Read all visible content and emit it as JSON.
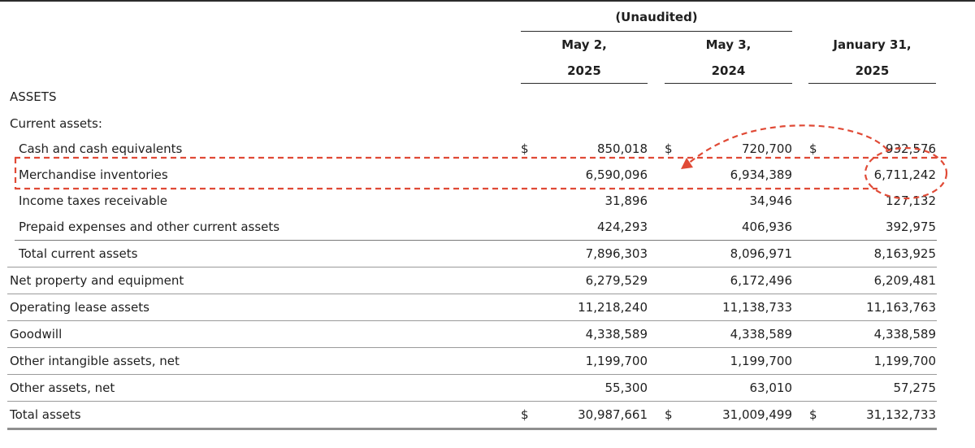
{
  "header": {
    "unaudited": "(Unaudited)",
    "columns": [
      {
        "line1": "May 2,",
        "line2": "2025"
      },
      {
        "line1": "May 3,",
        "line2": "2024"
      },
      {
        "line1": "January 31,",
        "line2": "2025"
      }
    ]
  },
  "sections": {
    "assets": "ASSETS",
    "current_assets": "Current assets:"
  },
  "currency_symbol": "$",
  "rows": [
    {
      "label": "Cash and cash equivalents",
      "values": [
        "850,018",
        "720,700",
        "932,576"
      ],
      "dollar": true
    },
    {
      "label": "Merchandise inventories",
      "values": [
        "6,590,096",
        "6,934,389",
        "6,711,242"
      ],
      "dollar": false
    },
    {
      "label": "Income taxes receivable",
      "values": [
        "31,896",
        "34,946",
        "127,132"
      ],
      "dollar": false
    },
    {
      "label": "Prepaid expenses and other current assets",
      "values": [
        "424,293",
        "406,936",
        "392,975"
      ],
      "dollar": false
    },
    {
      "label": "Total current assets",
      "values": [
        "7,896,303",
        "8,096,971",
        "8,163,925"
      ],
      "dollar": false
    },
    {
      "label": "Net property and equipment",
      "values": [
        "6,279,529",
        "6,172,496",
        "6,209,481"
      ],
      "dollar": false
    },
    {
      "label": "Operating lease assets",
      "values": [
        "11,218,240",
        "11,138,733",
        "11,163,763"
      ],
      "dollar": false
    },
    {
      "label": "Goodwill",
      "values": [
        "4,338,589",
        "4,338,589",
        "4,338,589"
      ],
      "dollar": false
    },
    {
      "label": "Other intangible assets, net",
      "values": [
        "1,199,700",
        "1,199,700",
        "1,199,700"
      ],
      "dollar": false
    },
    {
      "label": "Other assets, net",
      "values": [
        "55,300",
        "63,010",
        "57,275"
      ],
      "dollar": false
    },
    {
      "label": "Total assets",
      "values": [
        "30,987,661",
        "31,009,499",
        "31,132,733"
      ],
      "dollar": true
    }
  ],
  "annotation": {
    "color": "#e04a36"
  }
}
